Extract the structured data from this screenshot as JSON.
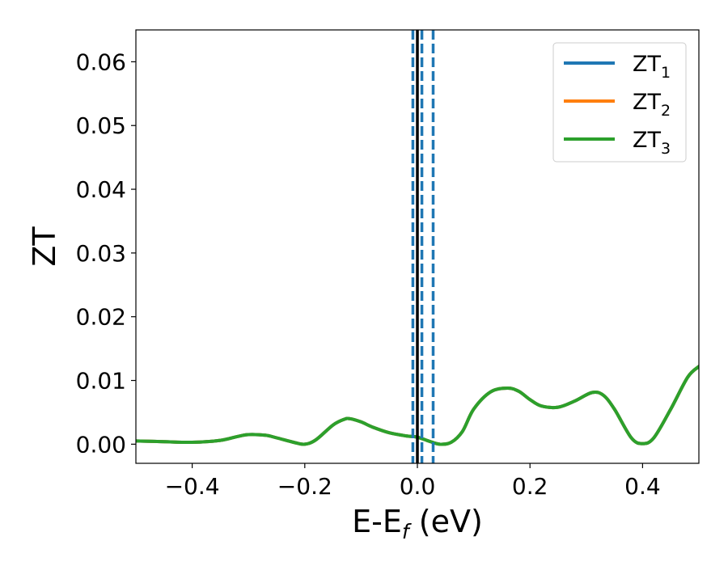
{
  "chart_data": {
    "type": "line",
    "xlabel": {
      "main": "E-E",
      "sub": "f",
      "unit": " (eV)"
    },
    "ylabel": "ZT",
    "xlim": [
      -0.5,
      0.5
    ],
    "ylim": [
      -0.003,
      0.065
    ],
    "xticks": [
      -0.4,
      -0.2,
      0.0,
      0.2,
      0.4
    ],
    "xtick_labels": [
      "−0.4",
      "−0.2",
      "0.0",
      "0.2",
      "0.4"
    ],
    "yticks": [
      0.0,
      0.01,
      0.02,
      0.03,
      0.04,
      0.05,
      0.06
    ],
    "ytick_labels": [
      "0.00",
      "0.01",
      "0.02",
      "0.03",
      "0.04",
      "0.05",
      "0.06"
    ],
    "grid": false,
    "legend_position": "top-right",
    "series": [
      {
        "name": "ZT",
        "sub": "1",
        "color": "#1f77b4",
        "x": [
          -0.5,
          -0.45,
          -0.4,
          -0.35,
          -0.32,
          -0.3,
          -0.27,
          -0.25,
          -0.22,
          -0.2,
          -0.18,
          -0.15,
          -0.13,
          -0.12,
          -0.1,
          -0.08,
          -0.05,
          -0.02,
          0.0,
          0.02,
          0.04,
          0.06,
          0.08,
          0.1,
          0.13,
          0.16,
          0.18,
          0.2,
          0.22,
          0.25,
          0.28,
          0.31,
          0.33,
          0.35,
          0.38,
          0.4,
          0.42,
          0.45,
          0.48,
          0.5
        ],
        "y": [
          0.0005,
          0.0004,
          0.0003,
          0.0006,
          0.0012,
          0.0015,
          0.0014,
          0.001,
          0.0003,
          0.0,
          0.0007,
          0.003,
          0.0039,
          0.004,
          0.0035,
          0.0027,
          0.0018,
          0.0013,
          0.0011,
          0.0005,
          0.0,
          0.0003,
          0.002,
          0.0055,
          0.0082,
          0.0088,
          0.0083,
          0.007,
          0.006,
          0.0058,
          0.0068,
          0.0081,
          0.0077,
          0.0055,
          0.001,
          0.0001,
          0.001,
          0.0055,
          0.0105,
          0.0122
        ]
      },
      {
        "name": "ZT",
        "sub": "2",
        "color": "#ff7f0e",
        "x": [
          -0.5,
          -0.45,
          -0.4,
          -0.35,
          -0.32,
          -0.3,
          -0.27,
          -0.25,
          -0.22,
          -0.2,
          -0.18,
          -0.15,
          -0.13,
          -0.12,
          -0.1,
          -0.08,
          -0.05,
          -0.02,
          0.0,
          0.02,
          0.04,
          0.06,
          0.08,
          0.1,
          0.13,
          0.16,
          0.18,
          0.2,
          0.22,
          0.25,
          0.28,
          0.31,
          0.33,
          0.35,
          0.38,
          0.4,
          0.42,
          0.45,
          0.48,
          0.5
        ],
        "y": [
          0.0005,
          0.0004,
          0.0003,
          0.0006,
          0.0012,
          0.0015,
          0.0014,
          0.001,
          0.0003,
          0.0,
          0.0007,
          0.003,
          0.0039,
          0.004,
          0.0035,
          0.0027,
          0.0018,
          0.0013,
          0.0011,
          0.0005,
          0.0,
          0.0003,
          0.002,
          0.0055,
          0.0082,
          0.0088,
          0.0083,
          0.007,
          0.006,
          0.0058,
          0.0068,
          0.0081,
          0.0077,
          0.0055,
          0.001,
          0.0001,
          0.001,
          0.0055,
          0.0105,
          0.0122
        ]
      },
      {
        "name": "ZT",
        "sub": "3",
        "color": "#2ca02c",
        "x": [
          -0.5,
          -0.45,
          -0.4,
          -0.35,
          -0.32,
          -0.3,
          -0.27,
          -0.25,
          -0.22,
          -0.2,
          -0.18,
          -0.15,
          -0.13,
          -0.12,
          -0.1,
          -0.08,
          -0.05,
          -0.02,
          0.0,
          0.02,
          0.04,
          0.06,
          0.08,
          0.1,
          0.13,
          0.16,
          0.18,
          0.2,
          0.22,
          0.25,
          0.28,
          0.31,
          0.33,
          0.35,
          0.38,
          0.4,
          0.42,
          0.45,
          0.48,
          0.5
        ],
        "y": [
          0.0005,
          0.0004,
          0.0003,
          0.0006,
          0.0012,
          0.0015,
          0.0014,
          0.001,
          0.0003,
          0.0,
          0.0007,
          0.003,
          0.0039,
          0.004,
          0.0035,
          0.0027,
          0.0018,
          0.0013,
          0.0011,
          0.0005,
          0.0,
          0.0003,
          0.002,
          0.0055,
          0.0082,
          0.0088,
          0.0083,
          0.007,
          0.006,
          0.0058,
          0.0068,
          0.0081,
          0.0077,
          0.0055,
          0.001,
          0.0001,
          0.001,
          0.0055,
          0.0105,
          0.0122
        ]
      }
    ],
    "vlines": [
      {
        "x": 0.0,
        "color": "#000000",
        "style": "solid"
      },
      {
        "x": -0.008,
        "color": "#1f77b4",
        "style": "dashed"
      },
      {
        "x": 0.008,
        "color": "#1f77b4",
        "style": "dashed"
      },
      {
        "x": 0.028,
        "color": "#1f77b4",
        "style": "dashed"
      }
    ]
  }
}
